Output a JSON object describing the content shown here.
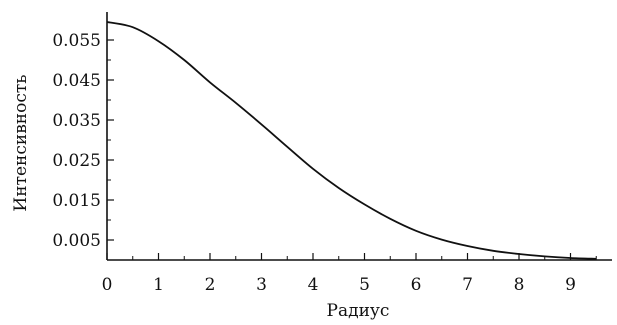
{
  "chart_data": {
    "type": "line",
    "title": "",
    "xlabel": "Радиус",
    "ylabel": "Интенсивность",
    "xlim": [
      0,
      9.9
    ],
    "ylim": [
      0,
      0.0595
    ],
    "x_ticks": [
      0,
      1,
      2,
      3,
      4,
      5,
      6,
      7,
      8,
      9
    ],
    "x_tick_labels": [
      "0",
      "1",
      "2",
      "3",
      "4",
      "5",
      "6",
      "7",
      "8",
      "9"
    ],
    "y_ticks": [
      0.005,
      0.015,
      0.025,
      0.035,
      0.045,
      0.055
    ],
    "y_tick_labels": [
      "0.005",
      "0.015",
      "0.025",
      "0.035",
      "0.045",
      "0.055"
    ],
    "grid": false,
    "line_color": "#111111",
    "series": [
      {
        "x": [
          0,
          0.5,
          1,
          1.5,
          2,
          2.5,
          3,
          3.5,
          4,
          4.5,
          5,
          5.5,
          6,
          6.5,
          7,
          7.5,
          8,
          8.5,
          9,
          9.5
        ],
        "y": [
          0.0595,
          0.0582,
          0.0547,
          0.05,
          0.0444,
          0.0393,
          0.0339,
          0.0283,
          0.0228,
          0.018,
          0.0139,
          0.0103,
          0.0073,
          0.0051,
          0.0035,
          0.0023,
          0.0015,
          0.0009,
          0.0005,
          0.0003
        ]
      }
    ]
  }
}
